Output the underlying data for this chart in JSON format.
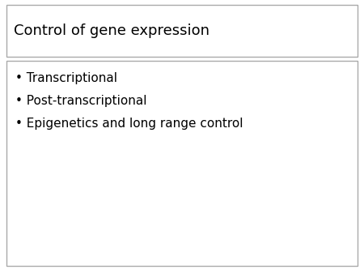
{
  "title": "Control of gene expression",
  "bullet_points": [
    "Transcriptional",
    "Post-transcriptional",
    "Epigenetics and long range control"
  ],
  "background_color": "#ffffff",
  "box_edge_color": "#aaaaaa",
  "text_color": "#000000",
  "title_fontsize": 13,
  "bullet_fontsize": 11,
  "fig_width": 4.5,
  "fig_height": 3.38,
  "dpi": 100,
  "bullet_char": "•"
}
